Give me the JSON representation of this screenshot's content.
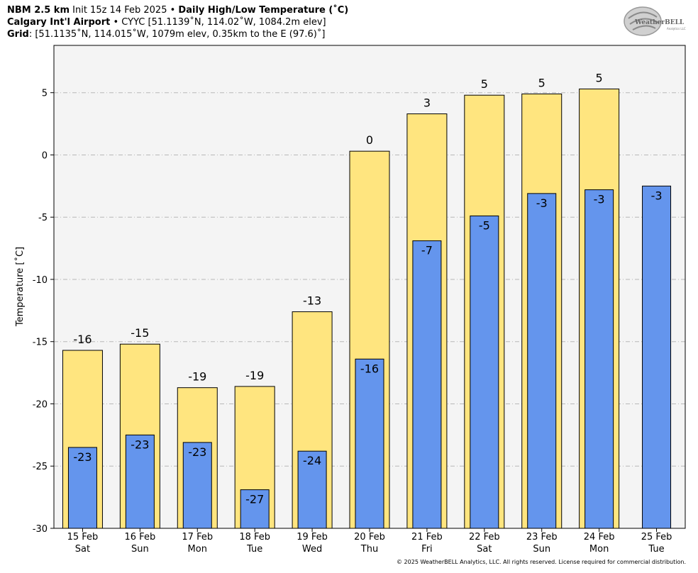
{
  "header": {
    "model": "NBM 2.5 km",
    "init": "Init 15z 14 Feb 2025",
    "sep": "•",
    "product": "Daily High/Low Temperature (˚C)",
    "station": "Calgary Int'l Airport",
    "station_info": "CYYC [51.1139˚N, 114.02˚W, 1084.2m elev]",
    "grid_label": "Grid",
    "grid_info": ": [51.1135˚N, 114.015˚W, 1079m elev, 0.35km to the E (97.6)˚]"
  },
  "logo": {
    "text": "WeatherBELL",
    "subtext": "Analytics LLC"
  },
  "copyright": "© 2025 WeatherBELL Analytics, LLC. All rights reserved. License required for commercial distribution.",
  "chart_data": {
    "type": "bar",
    "ylabel": "Temperature [˚C]",
    "ylim": [
      -30,
      8.8
    ],
    "yticks": [
      5,
      0,
      -5,
      -10,
      -15,
      -20,
      -25,
      -30
    ],
    "grid": true,
    "categories": [
      {
        "date": "15 Feb",
        "day": "Sat"
      },
      {
        "date": "16 Feb",
        "day": "Sun"
      },
      {
        "date": "17 Feb",
        "day": "Mon"
      },
      {
        "date": "18 Feb",
        "day": "Tue"
      },
      {
        "date": "19 Feb",
        "day": "Wed"
      },
      {
        "date": "20 Feb",
        "day": "Thu"
      },
      {
        "date": "21 Feb",
        "day": "Fri"
      },
      {
        "date": "22 Feb",
        "day": "Sat"
      },
      {
        "date": "23 Feb",
        "day": "Sun"
      },
      {
        "date": "24 Feb",
        "day": "Mon"
      },
      {
        "date": "25 Feb",
        "day": "Tue"
      }
    ],
    "series": [
      {
        "role": "high",
        "color": "#ffe57f",
        "values": [
          -15.7,
          -15.2,
          -18.7,
          -18.6,
          -12.6,
          0.3,
          3.3,
          4.8,
          4.9,
          5.3,
          null
        ],
        "labels": [
          "-16",
          "-15",
          "-19",
          "-19",
          "-13",
          "0",
          "3",
          "5",
          "5",
          "5",
          null
        ]
      },
      {
        "role": "low",
        "color": "#6495ed",
        "values": [
          -23.5,
          -22.5,
          -23.1,
          -26.9,
          -23.8,
          -16.4,
          -6.9,
          -4.9,
          -3.1,
          -2.8,
          -2.5
        ],
        "labels": [
          "-23",
          "-23",
          "-23",
          "-27",
          "-24",
          "-16",
          "-7",
          "-5",
          "-3",
          "-3",
          "-3"
        ]
      }
    ]
  }
}
